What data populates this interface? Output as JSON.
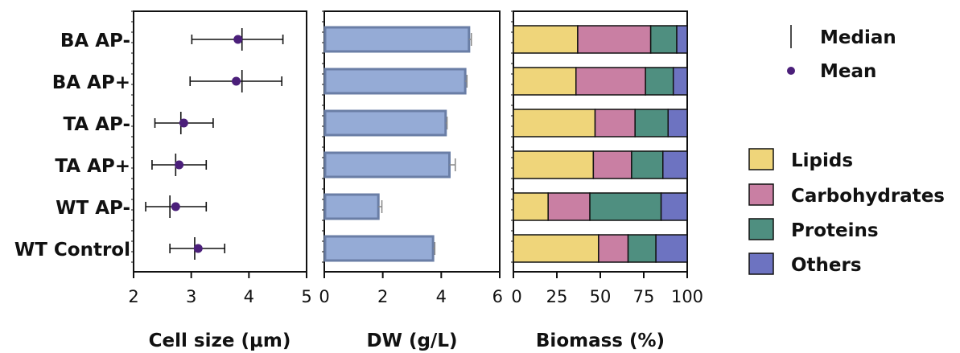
{
  "categories": [
    "BA AP-",
    "BA AP+",
    "TA AP-",
    "TA AP+",
    "WT AP-",
    "WT Control"
  ],
  "colors": {
    "mean_marker": "#4b1f7a",
    "bar_fill": "#95abd6",
    "bar_stroke": "#6a7ea6",
    "lipids": "#efd57a",
    "carbohydrates": "#c97fa3",
    "proteins": "#4f8f80",
    "others": "#6d73c1"
  },
  "chart_data": [
    {
      "type": "scatter",
      "xlabel": "Cell size (μm)",
      "xlim": [
        2,
        5
      ],
      "xticks": [
        "2",
        "3",
        "4",
        "5"
      ],
      "categories": [
        "BA AP-",
        "BA AP+",
        "TA AP-",
        "TA AP+",
        "WT AP-",
        "WT Control"
      ],
      "mean": [
        3.81,
        3.78,
        2.87,
        2.79,
        2.73,
        3.12
      ],
      "median": [
        3.88,
        3.88,
        2.82,
        2.73,
        2.63,
        3.06
      ],
      "err_low": [
        3.01,
        2.98,
        2.37,
        2.32,
        2.21,
        2.63
      ],
      "err_high": [
        4.59,
        4.57,
        3.38,
        3.26,
        3.26,
        3.58
      ]
    },
    {
      "type": "bar",
      "xlabel": "DW (g/L)",
      "xlim": [
        0,
        6
      ],
      "xticks": [
        "0",
        "2",
        "4",
        "6"
      ],
      "categories": [
        "BA AP-",
        "BA AP+",
        "TA AP-",
        "TA AP+",
        "WT AP-",
        "WT Control"
      ],
      "values": [
        4.95,
        4.82,
        4.15,
        4.28,
        1.85,
        3.72
      ],
      "errors": [
        0.08,
        0.06,
        0.05,
        0.2,
        0.12,
        0.06
      ]
    },
    {
      "type": "bar",
      "stacked": true,
      "xlabel": "Biomass (%)",
      "xlim": [
        0,
        100
      ],
      "xticks": [
        "0",
        "25",
        "50",
        "75",
        "100"
      ],
      "categories": [
        "BA AP-",
        "BA AP+",
        "TA AP-",
        "TA AP+",
        "WT AP-",
        "WT Control"
      ],
      "series": [
        {
          "name": "Lipids",
          "values": [
            37,
            36,
            47,
            46,
            20,
            49
          ]
        },
        {
          "name": "Carbohydrates",
          "values": [
            42,
            40,
            23,
            22,
            24,
            17
          ]
        },
        {
          "name": "Proteins",
          "values": [
            15,
            16,
            19,
            18,
            41,
            16
          ]
        },
        {
          "name": "Others",
          "values": [
            6,
            8,
            11,
            14,
            15,
            18
          ]
        }
      ]
    }
  ],
  "legend_top": [
    {
      "label": "Median",
      "marker": "line"
    },
    {
      "label": "Mean",
      "marker": "dot"
    }
  ],
  "legend_bottom": [
    "Lipids",
    "Carbohydrates",
    "Proteins",
    "Others"
  ]
}
